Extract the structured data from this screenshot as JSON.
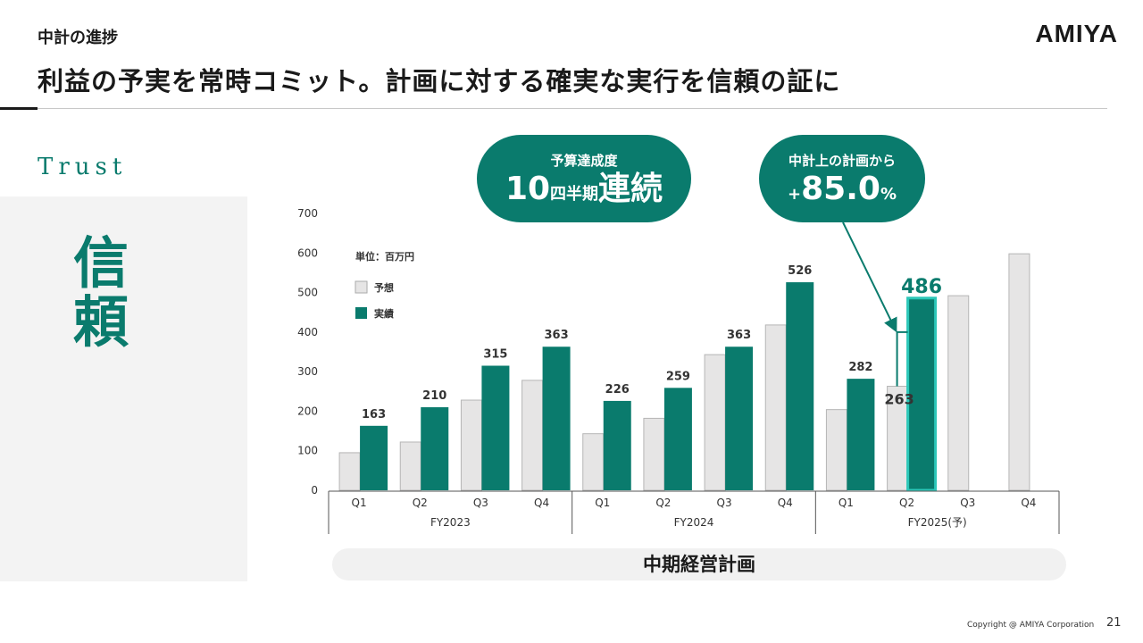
{
  "header": {
    "section": "中計の進捗",
    "logo": "AMIYA",
    "headline": "利益の予実を常時コミット。計画に対する確実な実行を信頼の証に"
  },
  "left_panel": {
    "eyebrow": "Trust",
    "kanji": "信頼"
  },
  "callouts": {
    "budget": {
      "title": "予算達成度",
      "number": "10",
      "unit": "四半期",
      "suffix": "連続"
    },
    "plan": {
      "title": "中計上の計画から",
      "sign": "+",
      "value": "85.0",
      "unit": "%"
    }
  },
  "footer": {
    "plan_label": "中期経営計画",
    "copyright": "Copyright @ AMIYA Corporation",
    "page": "21"
  },
  "colors": {
    "accent": "#0a7b6d",
    "forecast_bar": "#e6e5e5",
    "highlight": "#2cc7b8"
  },
  "chart_data": {
    "type": "bar",
    "unit_label": "単位：百万円",
    "ylim": [
      0,
      700
    ],
    "yticks": [
      0,
      100,
      200,
      300,
      400,
      500,
      600,
      700
    ],
    "grid": false,
    "legend": "top-left",
    "categories": [
      "Q1",
      "Q2",
      "Q3",
      "Q4",
      "Q1",
      "Q2",
      "Q3",
      "Q4",
      "Q1",
      "Q2",
      "Q3",
      "Q4"
    ],
    "groups": [
      {
        "label": "FY2023",
        "span": 4
      },
      {
        "label": "FY2024",
        "span": 4
      },
      {
        "label": "FY2025(予)",
        "span": 4
      }
    ],
    "series": [
      {
        "name": "予想",
        "color": "#e6e5e5",
        "values": [
          95,
          122,
          228,
          278,
          143,
          182,
          343,
          418,
          204,
          263,
          492,
          598
        ],
        "labels": [
          null,
          null,
          null,
          null,
          null,
          null,
          null,
          null,
          null,
          "263",
          null,
          null
        ]
      },
      {
        "name": "実績",
        "color": "#0a7b6d",
        "values": [
          163,
          210,
          315,
          363,
          226,
          259,
          363,
          526,
          282,
          486,
          null,
          null
        ],
        "labels": [
          "163",
          "210",
          "315",
          "363",
          "226",
          "259",
          "363",
          "526",
          "282",
          "486",
          null,
          null
        ]
      }
    ],
    "highlight_index": 9
  }
}
